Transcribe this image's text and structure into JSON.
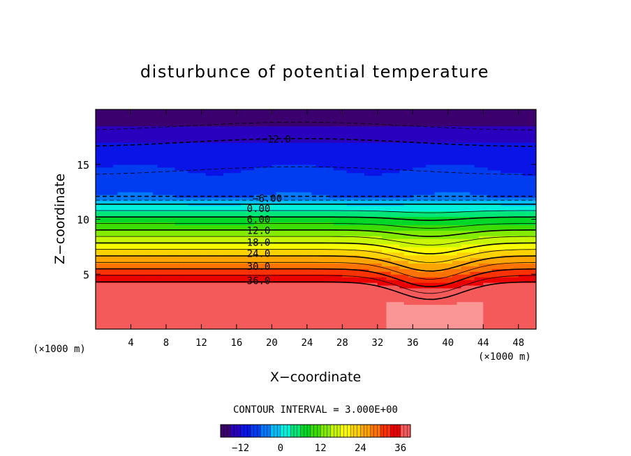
{
  "chart_data": {
    "type": "heatmap",
    "title": "disturbunce of potential temperature",
    "xlabel": "X−coordinate",
    "ylabel": "Z−coordinate",
    "x_unit_left": "(×1000 m)",
    "x_unit_right": "(×1000 m)",
    "xlim": [
      0,
      50
    ],
    "ylim": [
      0,
      20
    ],
    "x_ticks": [
      4,
      8,
      12,
      16,
      20,
      24,
      28,
      32,
      36,
      40,
      44,
      48
    ],
    "y_ticks": [
      5,
      10,
      15
    ],
    "contour_interval_text": "CONTOUR INTERVAL = 3.000E+00",
    "contour_interval": 3,
    "contour_labels": [
      {
        "text": "−12.0",
        "value": -12,
        "x": 19,
        "z": 17.3
      },
      {
        "text": "−6.00",
        "value": -6,
        "x": 18,
        "z": 11.9
      },
      {
        "text": "0.00",
        "value": 0,
        "x": 17,
        "z": 11.0
      },
      {
        "text": "6.00",
        "value": 6,
        "x": 17,
        "z": 10.0
      },
      {
        "text": "12.0",
        "value": 12,
        "x": 17,
        "z": 9.0
      },
      {
        "text": "18.0",
        "value": 18,
        "x": 17,
        "z": 7.9
      },
      {
        "text": "24.0",
        "value": 24,
        "x": 17,
        "z": 6.9
      },
      {
        "text": "30.0",
        "value": 30,
        "x": 17,
        "z": 5.7
      },
      {
        "text": "36.0",
        "value": 36,
        "x": 17,
        "z": 4.4
      }
    ],
    "colorbar": {
      "min": -18,
      "max": 39,
      "ticks": [
        {
          "value": -12,
          "label": "−12"
        },
        {
          "value": 0,
          "label": "0"
        },
        {
          "value": 12,
          "label": "12"
        },
        {
          "value": 24,
          "label": "24"
        },
        {
          "value": 36,
          "label": "36"
        }
      ]
    }
  }
}
